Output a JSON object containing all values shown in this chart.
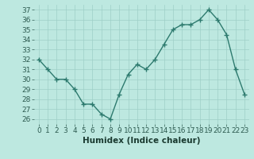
{
  "x": [
    0,
    1,
    2,
    3,
    4,
    5,
    6,
    7,
    8,
    9,
    10,
    11,
    12,
    13,
    14,
    15,
    16,
    17,
    18,
    19,
    20,
    21,
    22,
    23
  ],
  "y": [
    32,
    31,
    30,
    30,
    29,
    27.5,
    27.5,
    26.5,
    26,
    28.5,
    30.5,
    31.5,
    31,
    32,
    33.5,
    35,
    35.5,
    35.5,
    36,
    37,
    36,
    34.5,
    31,
    28.5
  ],
  "xlabel": "Humidex (Indice chaleur)",
  "ylim": [
    25.5,
    37.5
  ],
  "xlim": [
    -0.5,
    23.5
  ],
  "yticks": [
    26,
    27,
    28,
    29,
    30,
    31,
    32,
    33,
    34,
    35,
    36,
    37
  ],
  "xticks": [
    0,
    1,
    2,
    3,
    4,
    5,
    6,
    7,
    8,
    9,
    10,
    11,
    12,
    13,
    14,
    15,
    16,
    17,
    18,
    19,
    20,
    21,
    22,
    23
  ],
  "line_color": "#2d7a6e",
  "marker_color": "#2d7a6e",
  "bg_color": "#bde8e0",
  "grid_color": "#9ecfc7",
  "xlabel_fontsize": 7.5,
  "tick_fontsize": 6.5
}
